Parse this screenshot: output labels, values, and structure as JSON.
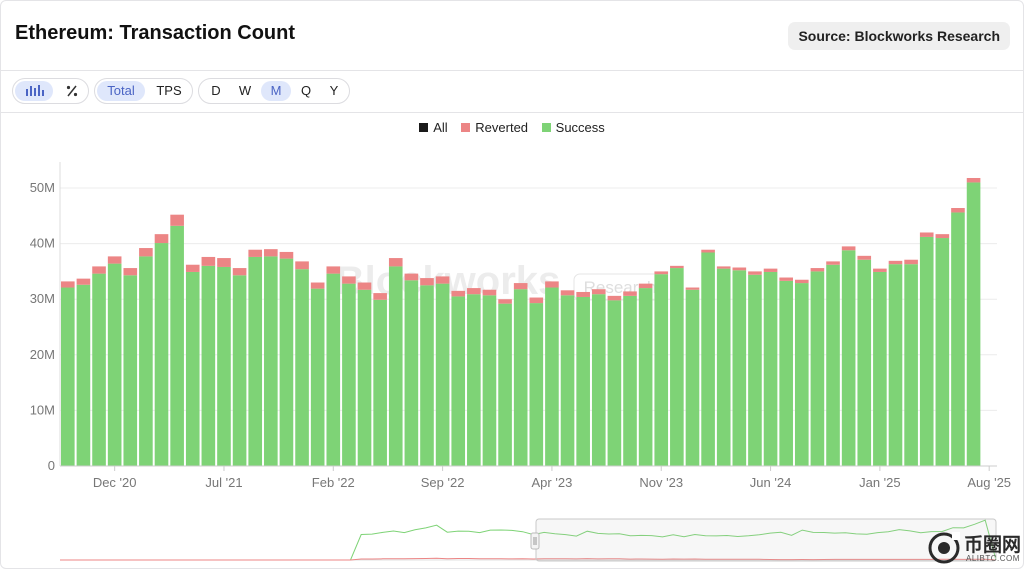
{
  "header": {
    "title": "Ethereum: Transaction Count",
    "source": "Source: Blockworks Research"
  },
  "toolbar": {
    "chart_icons": [
      "bar-chart-icon",
      "percent-icon"
    ],
    "metric_options": [
      {
        "label": "Total",
        "active": true
      },
      {
        "label": "TPS",
        "active": false
      }
    ],
    "period_options": [
      {
        "label": "D",
        "active": false
      },
      {
        "label": "W",
        "active": false
      },
      {
        "label": "M",
        "active": true
      },
      {
        "label": "Q",
        "active": false
      },
      {
        "label": "Y",
        "active": false
      }
    ]
  },
  "watermark": {
    "text": "Blockworks",
    "tag": "Research"
  },
  "logo": {
    "text": "币圈网",
    "domain": "ALIBTC.COM"
  },
  "colors": {
    "all": "#1a1a1a",
    "reverted": "#ec8585",
    "success": "#7ed376",
    "axis": "#777777",
    "grid": "#ececec"
  },
  "chart_data": {
    "type": "bar",
    "stacked": true,
    "legend": [
      "All",
      "Reverted",
      "Success"
    ],
    "legend_position": "top-center",
    "ylim": [
      0,
      52
    ],
    "y_ticks": [
      "0",
      "10M",
      "20M",
      "30M",
      "40M",
      "50M"
    ],
    "y_tick_values": [
      0,
      10,
      20,
      30,
      40,
      50
    ],
    "x_tick_labels": [
      "Dec '20",
      "Jul '21",
      "Feb '22",
      "Sep '22",
      "Apr '23",
      "Nov '23",
      "Jun '24",
      "Jan '25",
      "Aug '25"
    ],
    "x_tick_indices": [
      3,
      10,
      17,
      24,
      31,
      38,
      45,
      52,
      59
    ],
    "categories": [
      "Sep '20",
      "Oct '20",
      "Nov '20",
      "Dec '20",
      "Jan '21",
      "Feb '21",
      "Mar '21",
      "Apr '21",
      "May '21",
      "Jun '21",
      "Jul '21",
      "Aug '21",
      "Sep '21",
      "Oct '21",
      "Nov '21",
      "Dec '21",
      "Jan '22",
      "Feb '22",
      "Mar '22",
      "Apr '22",
      "May '22",
      "Jun '22",
      "Jul '22",
      "Aug '22",
      "Sep '22",
      "Oct '22",
      "Nov '22",
      "Dec '22",
      "Jan '23",
      "Feb '23",
      "Mar '23",
      "Apr '23",
      "May '23",
      "Jun '23",
      "Jul '23",
      "Aug '23",
      "Sep '23",
      "Oct '23",
      "Nov '23",
      "Dec '23",
      "Jan '24",
      "Feb '24",
      "Mar '24",
      "Apr '24",
      "May '24",
      "Jun '24",
      "Jul '24",
      "Aug '24",
      "Sep '24",
      "Oct '24",
      "Nov '24",
      "Dec '24",
      "Jan '25",
      "Feb '25",
      "Mar '25",
      "Apr '25",
      "May '25",
      "Jun '25",
      "Jul '25",
      "Aug '25"
    ],
    "series": [
      {
        "name": "Success",
        "values": [
          32.1,
          32.6,
          34.6,
          36.4,
          34.3,
          37.7,
          40.1,
          43.2,
          34.9,
          36.0,
          35.8,
          34.3,
          37.6,
          37.7,
          37.3,
          35.4,
          31.9,
          34.6,
          32.8,
          31.7,
          29.9,
          35.9,
          33.4,
          32.5,
          32.8,
          30.5,
          30.9,
          30.7,
          29.2,
          31.8,
          29.3,
          32.1,
          30.7,
          30.4,
          30.9,
          29.8,
          30.6,
          32.0,
          34.5,
          35.6,
          31.7,
          38.4,
          35.5,
          35.2,
          34.4,
          34.9,
          33.3,
          32.9,
          35.0,
          36.2,
          38.8,
          37.1,
          34.9,
          36.3,
          36.3,
          41.2,
          41.0,
          45.6,
          51.0,
          0
        ]
      },
      {
        "name": "Reverted",
        "values": [
          1.1,
          1.1,
          1.3,
          1.3,
          1.3,
          1.5,
          1.6,
          2.0,
          1.3,
          1.6,
          1.6,
          1.3,
          1.3,
          1.3,
          1.2,
          1.4,
          1.1,
          1.3,
          1.3,
          1.3,
          1.2,
          1.5,
          1.2,
          1.3,
          1.3,
          1.0,
          1.1,
          1.0,
          0.8,
          1.1,
          1.0,
          1.1,
          0.9,
          0.9,
          0.9,
          0.8,
          0.8,
          0.8,
          0.5,
          0.4,
          0.4,
          0.5,
          0.4,
          0.5,
          0.6,
          0.6,
          0.6,
          0.6,
          0.6,
          0.6,
          0.7,
          0.7,
          0.6,
          0.6,
          0.8,
          0.8,
          0.7,
          0.8,
          0.8,
          0
        ]
      },
      {
        "name": "All",
        "values": [
          0,
          0,
          0,
          0,
          0,
          0,
          0,
          0,
          0,
          0,
          0,
          0,
          0,
          0,
          0,
          0,
          0,
          0,
          0,
          0,
          0,
          0,
          0,
          0,
          0,
          0,
          0,
          0,
          0,
          0,
          0,
          0,
          0,
          0,
          0,
          0,
          0,
          0,
          0,
          0,
          0,
          0,
          0,
          0,
          0,
          0,
          0,
          0,
          0,
          0,
          0,
          0,
          0,
          0,
          0,
          0,
          0,
          0,
          0,
          0
        ]
      }
    ]
  }
}
